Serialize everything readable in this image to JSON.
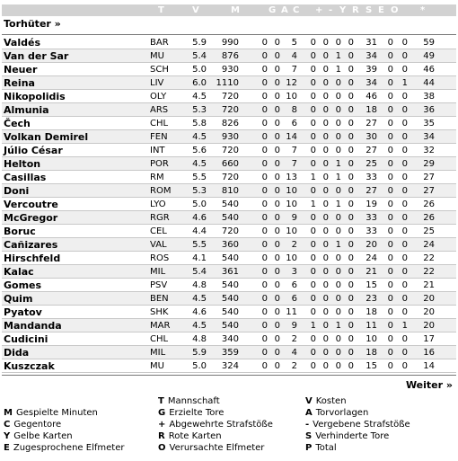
{
  "header": {
    "columns": [
      "T",
      "V",
      "M",
      "G",
      "A",
      "C",
      "+",
      "-",
      "Y",
      "R",
      "S",
      "E",
      "O",
      "*"
    ]
  },
  "section": {
    "title": "Torhüter »"
  },
  "players": [
    {
      "name": "Valdés",
      "team": "BAR",
      "kosten": "5.9",
      "min": "990",
      "g": "0",
      "a": "0",
      "c": "5",
      "plus": "0",
      "minus": "0",
      "y": "0",
      "r": "0",
      "s": "31",
      "e": "0",
      "o": "0",
      "total": "59"
    },
    {
      "name": "Van der Sar",
      "team": "MU",
      "kosten": "5.4",
      "min": "876",
      "g": "0",
      "a": "0",
      "c": "4",
      "plus": "0",
      "minus": "0",
      "y": "1",
      "r": "0",
      "s": "34",
      "e": "0",
      "o": "0",
      "total": "49"
    },
    {
      "name": "Neuer",
      "team": "SCH",
      "kosten": "5.0",
      "min": "930",
      "g": "0",
      "a": "0",
      "c": "7",
      "plus": "0",
      "minus": "0",
      "y": "1",
      "r": "0",
      "s": "39",
      "e": "0",
      "o": "0",
      "total": "46"
    },
    {
      "name": "Reina",
      "team": "LIV",
      "kosten": "6.0",
      "min": "1110",
      "g": "0",
      "a": "0",
      "c": "12",
      "plus": "0",
      "minus": "0",
      "y": "0",
      "r": "0",
      "s": "34",
      "e": "0",
      "o": "1",
      "total": "44"
    },
    {
      "name": "Nikopolidis",
      "team": "OLY",
      "kosten": "4.5",
      "min": "720",
      "g": "0",
      "a": "0",
      "c": "10",
      "plus": "0",
      "minus": "0",
      "y": "0",
      "r": "0",
      "s": "46",
      "e": "0",
      "o": "0",
      "total": "38"
    },
    {
      "name": "Almunia",
      "team": "ARS",
      "kosten": "5.3",
      "min": "720",
      "g": "0",
      "a": "0",
      "c": "8",
      "plus": "0",
      "minus": "0",
      "y": "0",
      "r": "0",
      "s": "18",
      "e": "0",
      "o": "0",
      "total": "36"
    },
    {
      "name": "Čech",
      "team": "CHL",
      "kosten": "5.8",
      "min": "826",
      "g": "0",
      "a": "0",
      "c": "6",
      "plus": "0",
      "minus": "0",
      "y": "0",
      "r": "0",
      "s": "27",
      "e": "0",
      "o": "0",
      "total": "35"
    },
    {
      "name": "Volkan Demirel",
      "team": "FEN",
      "kosten": "4.5",
      "min": "930",
      "g": "0",
      "a": "0",
      "c": "14",
      "plus": "0",
      "minus": "0",
      "y": "0",
      "r": "0",
      "s": "30",
      "e": "0",
      "o": "0",
      "total": "34"
    },
    {
      "name": "Júlio César",
      "team": "INT",
      "kosten": "5.6",
      "min": "720",
      "g": "0",
      "a": "0",
      "c": "7",
      "plus": "0",
      "minus": "0",
      "y": "0",
      "r": "0",
      "s": "27",
      "e": "0",
      "o": "0",
      "total": "32"
    },
    {
      "name": "Helton",
      "team": "POR",
      "kosten": "4.5",
      "min": "660",
      "g": "0",
      "a": "0",
      "c": "7",
      "plus": "0",
      "minus": "0",
      "y": "1",
      "r": "0",
      "s": "25",
      "e": "0",
      "o": "0",
      "total": "29"
    },
    {
      "name": "Casillas",
      "team": "RM",
      "kosten": "5.5",
      "min": "720",
      "g": "0",
      "a": "0",
      "c": "13",
      "plus": "1",
      "minus": "0",
      "y": "1",
      "r": "0",
      "s": "33",
      "e": "0",
      "o": "0",
      "total": "27"
    },
    {
      "name": "Doni",
      "team": "ROM",
      "kosten": "5.3",
      "min": "810",
      "g": "0",
      "a": "0",
      "c": "10",
      "plus": "0",
      "minus": "0",
      "y": "0",
      "r": "0",
      "s": "27",
      "e": "0",
      "o": "0",
      "total": "27"
    },
    {
      "name": "Vercoutre",
      "team": "LYO",
      "kosten": "5.0",
      "min": "540",
      "g": "0",
      "a": "0",
      "c": "10",
      "plus": "1",
      "minus": "0",
      "y": "1",
      "r": "0",
      "s": "19",
      "e": "0",
      "o": "0",
      "total": "26"
    },
    {
      "name": "McGregor",
      "team": "RGR",
      "kosten": "4.6",
      "min": "540",
      "g": "0",
      "a": "0",
      "c": "9",
      "plus": "0",
      "minus": "0",
      "y": "0",
      "r": "0",
      "s": "33",
      "e": "0",
      "o": "0",
      "total": "26"
    },
    {
      "name": "Boruc",
      "team": "CEL",
      "kosten": "4.4",
      "min": "720",
      "g": "0",
      "a": "0",
      "c": "10",
      "plus": "0",
      "minus": "0",
      "y": "0",
      "r": "0",
      "s": "33",
      "e": "0",
      "o": "0",
      "total": "25"
    },
    {
      "name": "Cañizares",
      "team": "VAL",
      "kosten": "5.5",
      "min": "360",
      "g": "0",
      "a": "0",
      "c": "2",
      "plus": "0",
      "minus": "0",
      "y": "1",
      "r": "0",
      "s": "20",
      "e": "0",
      "o": "0",
      "total": "24"
    },
    {
      "name": "Hirschfeld",
      "team": "ROS",
      "kosten": "4.1",
      "min": "540",
      "g": "0",
      "a": "0",
      "c": "10",
      "plus": "0",
      "minus": "0",
      "y": "0",
      "r": "0",
      "s": "24",
      "e": "0",
      "o": "0",
      "total": "22"
    },
    {
      "name": "Kalac",
      "team": "MIL",
      "kosten": "5.4",
      "min": "361",
      "g": "0",
      "a": "0",
      "c": "3",
      "plus": "0",
      "minus": "0",
      "y": "0",
      "r": "0",
      "s": "21",
      "e": "0",
      "o": "0",
      "total": "22"
    },
    {
      "name": "Gomes",
      "team": "PSV",
      "kosten": "4.8",
      "min": "540",
      "g": "0",
      "a": "0",
      "c": "6",
      "plus": "0",
      "minus": "0",
      "y": "0",
      "r": "0",
      "s": "15",
      "e": "0",
      "o": "0",
      "total": "21"
    },
    {
      "name": "Quim",
      "team": "BEN",
      "kosten": "4.5",
      "min": "540",
      "g": "0",
      "a": "0",
      "c": "6",
      "plus": "0",
      "minus": "0",
      "y": "0",
      "r": "0",
      "s": "23",
      "e": "0",
      "o": "0",
      "total": "20"
    },
    {
      "name": "Pyatov",
      "team": "SHK",
      "kosten": "4.6",
      "min": "540",
      "g": "0",
      "a": "0",
      "c": "11",
      "plus": "0",
      "minus": "0",
      "y": "0",
      "r": "0",
      "s": "18",
      "e": "0",
      "o": "0",
      "total": "20"
    },
    {
      "name": "Mandanda",
      "team": "MAR",
      "kosten": "4.5",
      "min": "540",
      "g": "0",
      "a": "0",
      "c": "9",
      "plus": "1",
      "minus": "0",
      "y": "1",
      "r": "0",
      "s": "11",
      "e": "0",
      "o": "1",
      "total": "20"
    },
    {
      "name": "Cudicini",
      "team": "CHL",
      "kosten": "4.8",
      "min": "340",
      "g": "0",
      "a": "0",
      "c": "2",
      "plus": "0",
      "minus": "0",
      "y": "0",
      "r": "0",
      "s": "10",
      "e": "0",
      "o": "0",
      "total": "17"
    },
    {
      "name": "Dida",
      "team": "MIL",
      "kosten": "5.9",
      "min": "359",
      "g": "0",
      "a": "0",
      "c": "4",
      "plus": "0",
      "minus": "0",
      "y": "0",
      "r": "0",
      "s": "18",
      "e": "0",
      "o": "0",
      "total": "16"
    },
    {
      "name": "Kuszczak",
      "team": "MU",
      "kosten": "5.0",
      "min": "324",
      "g": "0",
      "a": "0",
      "c": "2",
      "plus": "0",
      "minus": "0",
      "y": "0",
      "r": "0",
      "s": "15",
      "e": "0",
      "o": "0",
      "total": "14"
    }
  ],
  "nav": {
    "next_label": "Weiter »"
  },
  "legend": [
    {
      "key": "T",
      "text": "Mannschaft"
    },
    {
      "key": "V",
      "text": "Kosten"
    },
    {
      "key": "M",
      "text": "Gespielte Minuten"
    },
    {
      "key": "G",
      "text": "Erzielte Tore"
    },
    {
      "key": "A",
      "text": "Torvorlagen"
    },
    {
      "key": "C",
      "text": "Gegentore"
    },
    {
      "key": "+",
      "text": "Abgewehrte Strafstöße"
    },
    {
      "key": "-",
      "text": "Vergebene Strafstöße"
    },
    {
      "key": "Y",
      "text": "Gelbe Karten"
    },
    {
      "key": "R",
      "text": "Rote Karten"
    },
    {
      "key": "S",
      "text": "Verhinderte Tore"
    },
    {
      "key": "E",
      "text": "Zugesprochene Elfmeter"
    },
    {
      "key": "O",
      "text": "Verursachte Elfmeter"
    },
    {
      "key": "P",
      "text": "Total"
    }
  ],
  "colors": {
    "header_bg": "#d2d2d2",
    "header_text": "#ffffff",
    "row_alt": "#efefef",
    "row_line": "#c8c8c8"
  }
}
